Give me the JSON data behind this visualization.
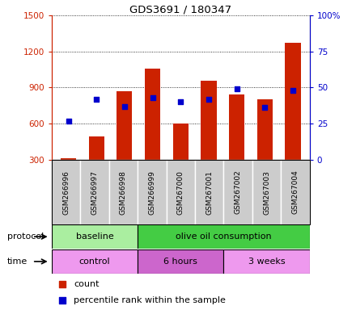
{
  "title": "GDS3691 / 180347",
  "samples": [
    "GSM266996",
    "GSM266997",
    "GSM266998",
    "GSM266999",
    "GSM267000",
    "GSM267001",
    "GSM267002",
    "GSM267003",
    "GSM267004"
  ],
  "counts": [
    315,
    490,
    870,
    1055,
    600,
    960,
    840,
    800,
    1270
  ],
  "percentile_ranks": [
    27,
    42,
    37,
    43,
    40,
    42,
    49,
    36,
    48
  ],
  "left_ylim": [
    300,
    1500
  ],
  "right_ylim": [
    0,
    100
  ],
  "left_yticks": [
    300,
    600,
    900,
    1200,
    1500
  ],
  "right_yticks": [
    0,
    25,
    50,
    75,
    100
  ],
  "right_yticklabels": [
    "0",
    "25",
    "50",
    "75",
    "100%"
  ],
  "left_color": "#cc2200",
  "right_color": "#0000cc",
  "protocol_groups": [
    {
      "label": "baseline",
      "start": 0,
      "end": 3,
      "color": "#aaeea0"
    },
    {
      "label": "olive oil consumption",
      "start": 3,
      "end": 9,
      "color": "#44cc44"
    }
  ],
  "time_groups": [
    {
      "label": "control",
      "start": 0,
      "end": 3,
      "color": "#ee99ee"
    },
    {
      "label": "6 hours",
      "start": 3,
      "end": 6,
      "color": "#cc66cc"
    },
    {
      "label": "3 weeks",
      "start": 6,
      "end": 9,
      "color": "#ee99ee"
    }
  ],
  "bar_color": "#cc2200",
  "blue_marker_color": "#0000cc",
  "bg_color": "#ffffff",
  "sample_bg": "#cccccc",
  "protocol_label": "protocol",
  "time_label": "time",
  "legend_count_label": "count",
  "legend_pct_label": "percentile rank within the sample"
}
